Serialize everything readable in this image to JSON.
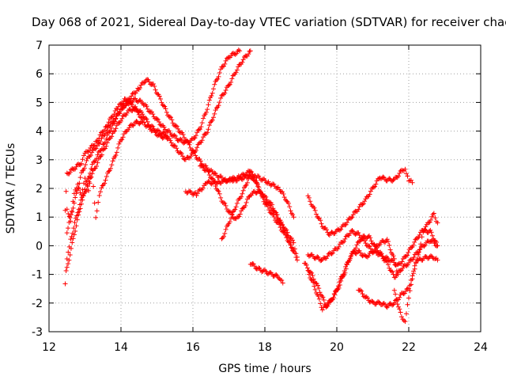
{
  "chart_data": {
    "type": "scatter",
    "title": "Day 068 of 2021, Sidereal Day-to-day VTEC variation (SDTVAR) for receiver chac",
    "xlabel": "GPS time / hours",
    "ylabel": "SDTVAR / TECUs",
    "xlim": [
      12,
      24
    ],
    "ylim": [
      -3,
      7
    ],
    "x_ticks": [
      "12",
      "14",
      "16",
      "18",
      "20",
      "22",
      "24"
    ],
    "y_ticks": [
      "-3",
      "-2",
      "-1",
      "0",
      "1",
      "2",
      "3",
      "4",
      "5",
      "6",
      "7"
    ],
    "grid": true,
    "marker": "plus",
    "series_color": "#ff0000",
    "series": [
      {
        "values": [
          [
            12.45,
            -1.3
          ],
          [
            12.5,
            -0.5
          ],
          [
            12.6,
            0.2
          ],
          [
            12.8,
            1.2
          ],
          [
            13.0,
            2.0
          ],
          [
            13.2,
            2.8
          ],
          [
            13.5,
            3.5
          ],
          [
            13.8,
            4.3
          ],
          [
            14.0,
            4.8
          ],
          [
            14.2,
            5.0
          ],
          [
            14.4,
            5.1
          ],
          [
            14.6,
            5.0
          ],
          [
            14.8,
            4.7
          ],
          [
            15.0,
            4.4
          ],
          [
            15.2,
            4.1
          ],
          [
            15.4,
            3.9
          ],
          [
            15.6,
            3.7
          ],
          [
            15.8,
            3.6
          ],
          [
            16.0,
            3.7
          ],
          [
            16.2,
            4.1
          ],
          [
            16.4,
            4.8
          ],
          [
            16.6,
            5.6
          ],
          [
            16.8,
            6.2
          ],
          [
            17.0,
            6.6
          ],
          [
            17.3,
            6.8
          ]
        ]
      },
      {
        "values": [
          [
            12.5,
            -0.8
          ],
          [
            12.7,
            0.4
          ],
          [
            12.9,
            1.5
          ],
          [
            13.2,
            2.5
          ],
          [
            13.5,
            3.3
          ],
          [
            13.8,
            4.0
          ],
          [
            14.0,
            4.4
          ],
          [
            14.2,
            4.7
          ],
          [
            14.4,
            4.8
          ],
          [
            14.6,
            4.6
          ],
          [
            14.8,
            4.2
          ],
          [
            15.0,
            4.0
          ],
          [
            15.2,
            3.9
          ],
          [
            15.4,
            3.6
          ],
          [
            15.6,
            3.3
          ],
          [
            15.8,
            3.0
          ],
          [
            16.0,
            3.2
          ],
          [
            16.2,
            3.6
          ],
          [
            16.4,
            4.0
          ],
          [
            16.6,
            4.6
          ],
          [
            16.8,
            5.2
          ],
          [
            17.0,
            5.6
          ],
          [
            17.2,
            6.1
          ],
          [
            17.4,
            6.5
          ],
          [
            17.6,
            6.8
          ]
        ]
      },
      {
        "values": [
          [
            12.5,
            0.5
          ],
          [
            12.7,
            1.5
          ],
          [
            12.9,
            2.5
          ],
          [
            13.1,
            3.1
          ],
          [
            13.4,
            3.6
          ],
          [
            13.7,
            4.2
          ],
          [
            14.0,
            4.7
          ],
          [
            14.2,
            5.1
          ],
          [
            14.5,
            5.5
          ],
          [
            14.7,
            5.8
          ],
          [
            14.9,
            5.6
          ],
          [
            15.1,
            5.1
          ],
          [
            15.3,
            4.6
          ],
          [
            15.5,
            4.2
          ],
          [
            15.7,
            3.9
          ],
          [
            15.9,
            3.5
          ],
          [
            16.1,
            3.1
          ],
          [
            16.3,
            2.8
          ],
          [
            16.6,
            2.5
          ],
          [
            16.9,
            2.3
          ],
          [
            17.2,
            2.3
          ],
          [
            17.5,
            2.4
          ],
          [
            17.8,
            2.4
          ],
          [
            18.1,
            2.2
          ],
          [
            18.4,
            2.0
          ],
          [
            18.6,
            1.6
          ],
          [
            18.8,
            1.0
          ]
        ]
      },
      {
        "values": [
          [
            12.45,
            1.2
          ],
          [
            12.5,
            2.5
          ],
          [
            12.7,
            2.7
          ],
          [
            12.9,
            2.9
          ],
          [
            13.0,
            3.2
          ],
          [
            13.3,
            3.6
          ],
          [
            13.6,
            4.2
          ],
          [
            13.9,
            4.8
          ],
          [
            14.1,
            5.1
          ],
          [
            14.3,
            4.9
          ],
          [
            14.5,
            4.6
          ],
          [
            14.7,
            4.2
          ],
          [
            14.9,
            4.0
          ],
          [
            15.1,
            3.8
          ],
          [
            15.3,
            3.8
          ]
        ]
      },
      {
        "values": [
          [
            15.8,
            1.9
          ],
          [
            16.1,
            1.8
          ],
          [
            16.4,
            2.2
          ],
          [
            16.7,
            2.2
          ],
          [
            17.0,
            2.3
          ],
          [
            17.3,
            2.4
          ],
          [
            17.6,
            2.6
          ],
          [
            17.8,
            2.1
          ],
          [
            18.0,
            1.6
          ],
          [
            18.2,
            1.3
          ],
          [
            18.4,
            0.9
          ],
          [
            18.6,
            0.5
          ],
          [
            18.8,
            0.1
          ],
          [
            18.9,
            -0.4
          ]
        ]
      },
      {
        "values": [
          [
            16.2,
            2.8
          ],
          [
            16.4,
            2.6
          ],
          [
            16.6,
            2.2
          ],
          [
            16.8,
            1.6
          ],
          [
            17.0,
            1.2
          ],
          [
            17.2,
            0.9
          ],
          [
            17.4,
            1.3
          ],
          [
            17.6,
            1.8
          ],
          [
            17.8,
            1.9
          ],
          [
            18.0,
            1.7
          ],
          [
            18.2,
            1.4
          ],
          [
            18.4,
            0.9
          ],
          [
            18.6,
            0.4
          ],
          [
            18.8,
            -0.2
          ],
          [
            18.9,
            -0.5
          ]
        ]
      },
      {
        "values": [
          [
            16.8,
            0.2
          ],
          [
            17.0,
            0.8
          ],
          [
            17.2,
            1.4
          ],
          [
            17.4,
            1.9
          ],
          [
            17.6,
            2.5
          ],
          [
            17.8,
            2.1
          ],
          [
            18.0,
            1.5
          ],
          [
            18.2,
            1.1
          ],
          [
            18.4,
            0.7
          ],
          [
            18.6,
            0.3
          ],
          [
            18.8,
            -0.2
          ]
        ]
      },
      {
        "values": [
          [
            17.6,
            -0.6
          ],
          [
            17.8,
            -0.8
          ],
          [
            18.0,
            -0.9
          ],
          [
            18.2,
            -1.0
          ],
          [
            18.4,
            -1.1
          ],
          [
            18.5,
            -1.3
          ]
        ]
      },
      {
        "values": [
          [
            19.2,
            1.7
          ],
          [
            19.4,
            1.2
          ],
          [
            19.6,
            0.7
          ],
          [
            19.8,
            0.4
          ],
          [
            20.0,
            0.5
          ],
          [
            20.2,
            0.7
          ],
          [
            20.4,
            1.0
          ],
          [
            20.6,
            1.3
          ],
          [
            20.8,
            1.6
          ],
          [
            21.0,
            2.0
          ],
          [
            21.2,
            2.4
          ],
          [
            21.4,
            2.3
          ],
          [
            21.6,
            2.3
          ],
          [
            21.8,
            2.6
          ],
          [
            21.9,
            2.7
          ],
          [
            22.0,
            2.3
          ],
          [
            22.1,
            2.2
          ]
        ]
      },
      {
        "values": [
          [
            19.2,
            -0.3
          ],
          [
            19.4,
            -0.4
          ],
          [
            19.6,
            -0.5
          ],
          [
            19.8,
            -0.3
          ],
          [
            20.0,
            -0.1
          ],
          [
            20.2,
            0.2
          ],
          [
            20.4,
            0.5
          ],
          [
            20.6,
            0.4
          ],
          [
            20.8,
            0.1
          ],
          [
            21.0,
            -0.2
          ],
          [
            21.2,
            -0.3
          ],
          [
            21.4,
            -0.6
          ],
          [
            21.6,
            -1.1
          ],
          [
            21.8,
            -0.8
          ],
          [
            22.0,
            -0.6
          ],
          [
            22.2,
            -0.3
          ],
          [
            22.4,
            0.0
          ],
          [
            22.6,
            0.2
          ],
          [
            22.8,
            0.0
          ]
        ]
      },
      {
        "values": [
          [
            19.1,
            -0.6
          ],
          [
            19.3,
            -1.0
          ],
          [
            19.5,
            -1.5
          ],
          [
            19.7,
            -2.1
          ],
          [
            19.9,
            -1.8
          ],
          [
            20.1,
            -1.2
          ],
          [
            20.3,
            -0.6
          ],
          [
            20.5,
            -0.1
          ],
          [
            20.7,
            0.3
          ],
          [
            20.9,
            0.3
          ],
          [
            21.1,
            -0.1
          ],
          [
            21.3,
            -0.4
          ],
          [
            21.5,
            -0.5
          ],
          [
            21.7,
            -0.7
          ],
          [
            21.9,
            -0.4
          ],
          [
            22.1,
            0.0
          ],
          [
            22.3,
            0.4
          ],
          [
            22.5,
            0.7
          ],
          [
            22.7,
            1.1
          ],
          [
            22.8,
            0.8
          ]
        ]
      },
      {
        "values": [
          [
            19.2,
            -0.9
          ],
          [
            19.4,
            -1.5
          ],
          [
            19.6,
            -2.2
          ],
          [
            19.8,
            -2.0
          ],
          [
            20.0,
            -1.6
          ],
          [
            20.2,
            -1.0
          ],
          [
            20.4,
            -0.3
          ],
          [
            20.6,
            -0.2
          ],
          [
            20.8,
            -0.4
          ],
          [
            21.0,
            -0.2
          ],
          [
            21.2,
            0.1
          ],
          [
            21.4,
            0.2
          ],
          [
            21.6,
            -0.5
          ],
          [
            21.7,
            -1.0
          ]
        ]
      },
      {
        "values": [
          [
            20.6,
            -1.5
          ],
          [
            20.8,
            -1.8
          ],
          [
            21.0,
            -2.0
          ],
          [
            21.2,
            -2.0
          ],
          [
            21.4,
            -2.1
          ],
          [
            21.6,
            -2.0
          ],
          [
            21.8,
            -1.7
          ],
          [
            22.0,
            -1.5
          ],
          [
            22.1,
            -1.0
          ],
          [
            22.2,
            -0.6
          ],
          [
            22.3,
            -0.5
          ],
          [
            22.5,
            -0.4
          ],
          [
            22.7,
            -0.4
          ],
          [
            22.8,
            -0.5
          ]
        ]
      },
      {
        "values": [
          [
            21.6,
            -1.6
          ],
          [
            21.8,
            -2.5
          ],
          [
            21.9,
            -2.6
          ],
          [
            22.0,
            -1.8
          ],
          [
            22.1,
            -1.2
          ],
          [
            22.2,
            -0.6
          ],
          [
            22.3,
            -0.1
          ],
          [
            22.4,
            0.5
          ],
          [
            22.6,
            0.5
          ],
          [
            22.8,
            0.0
          ]
        ]
      },
      {
        "values": [
          [
            12.5,
            1.3
          ],
          [
            12.6,
            0.9
          ],
          [
            12.7,
            1.8
          ],
          [
            12.8,
            2.1
          ],
          [
            12.9,
            1.8
          ],
          [
            13.0,
            2.4
          ],
          [
            13.1,
            1.9
          ],
          [
            13.2,
            2.6
          ],
          [
            13.3,
            1.0
          ],
          [
            13.4,
            1.8
          ],
          [
            13.6,
            2.4
          ],
          [
            13.8,
            3.0
          ],
          [
            14.0,
            3.7
          ],
          [
            14.2,
            4.1
          ],
          [
            14.4,
            4.3
          ],
          [
            14.6,
            4.3
          ]
        ]
      }
    ]
  }
}
